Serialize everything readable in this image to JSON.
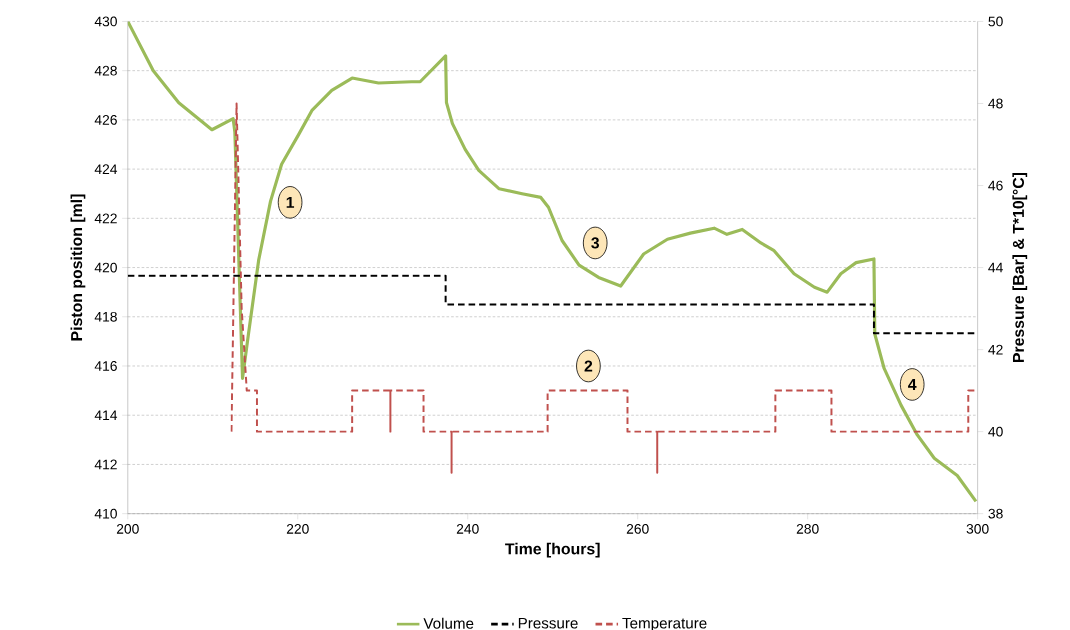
{
  "chart_data": {
    "type": "line",
    "xlabel": "Time [hours]",
    "ylabel": "Piston position [ml]",
    "y2label": "Pressure [Bar] & T*10[°C]",
    "xlim": [
      200,
      300
    ],
    "xticks": [
      200,
      220,
      240,
      260,
      280,
      300
    ],
    "ylim": [
      410,
      430
    ],
    "yticks": [
      410,
      412,
      414,
      416,
      418,
      420,
      422,
      424,
      426,
      428,
      430
    ],
    "y2lim": [
      38,
      50
    ],
    "y2ticks": [
      38,
      40,
      42,
      44,
      46,
      48,
      50
    ],
    "grid": "y",
    "legend": "bottom",
    "series": [
      {
        "name": "Volume",
        "color": "#9bbb59",
        "line_style": "solid",
        "axis": "y",
        "x": [
          200,
          203,
          206,
          209.9,
          212.4,
          212.6,
          213.5,
          214.2,
          215.4,
          216.8,
          218.1,
          220.1,
          221.7,
          224.0,
          226.4,
          229.5,
          233.4,
          234.4,
          237.4,
          237.5,
          238.2,
          239.7,
          241.3,
          243.7,
          246.4,
          248.6,
          249.5,
          251.1,
          253.1,
          255.4,
          258.0,
          260.7,
          263.5,
          266.2,
          269.0,
          270.5,
          272.3,
          274.5,
          276.0,
          278.4,
          280.8,
          282.3,
          283.9,
          285.7,
          287.8,
          287.9,
          289.0,
          291.0,
          292.9,
          294.9,
          297.6,
          299.8
        ],
        "values": [
          430,
          428,
          426.7,
          425.6,
          426.05,
          425.5,
          415.5,
          417.3,
          420.3,
          422.7,
          424.2,
          425.4,
          426.4,
          427.2,
          427.7,
          427.5,
          427.55,
          427.55,
          428.6,
          426.7,
          425.85,
          424.8,
          423.95,
          423.2,
          423.0,
          422.85,
          422.45,
          421.1,
          420.1,
          419.6,
          419.25,
          420.55,
          421.15,
          421.4,
          421.6,
          421.35,
          421.55,
          421.0,
          420.7,
          419.75,
          419.2,
          419.0,
          419.75,
          420.2,
          420.35,
          417.3,
          415.9,
          414.4,
          413.2,
          412.25,
          411.55,
          410.5
        ]
      },
      {
        "name": "Pressure",
        "color": "#000000",
        "line_style": "dashed",
        "axis": "y2",
        "x": [
          200,
          237.4,
          237.4,
          287.8,
          287.8,
          300
        ],
        "values": [
          43.8,
          43.8,
          43.1,
          43.1,
          42.4,
          42.4
        ]
      },
      {
        "name": "Temperature",
        "color": "#c0504d",
        "line_style": "dashed",
        "axis": "y2",
        "x": [
          212.2,
          212.8,
          213.4,
          214.0,
          215.2,
          215.2,
          226.4,
          226.4,
          230.9,
          230.9,
          230.9,
          234.8,
          234.8,
          238.1,
          238.1,
          238.1,
          249.4,
          249.4,
          258.8,
          258.8,
          262.3,
          262.3,
          262.3,
          276.2,
          276.2,
          282.8,
          282.8,
          298.9,
          298.9,
          300
        ],
        "values": [
          40,
          48,
          43,
          41,
          41,
          40,
          40,
          41,
          41,
          40,
          41,
          41,
          40,
          40,
          39,
          40,
          40,
          41,
          41,
          40,
          40,
          39,
          40,
          40,
          41,
          41,
          40,
          40,
          41,
          41
        ]
      }
    ],
    "annotations": [
      {
        "text": "1",
        "x": 219.1,
        "y": 422.65
      },
      {
        "text": "2",
        "x": 254.2,
        "y": 416.0
      },
      {
        "text": "3",
        "x": 255.0,
        "y": 421.0
      },
      {
        "text": "4",
        "x": 292.3,
        "y": 415.25
      }
    ]
  }
}
